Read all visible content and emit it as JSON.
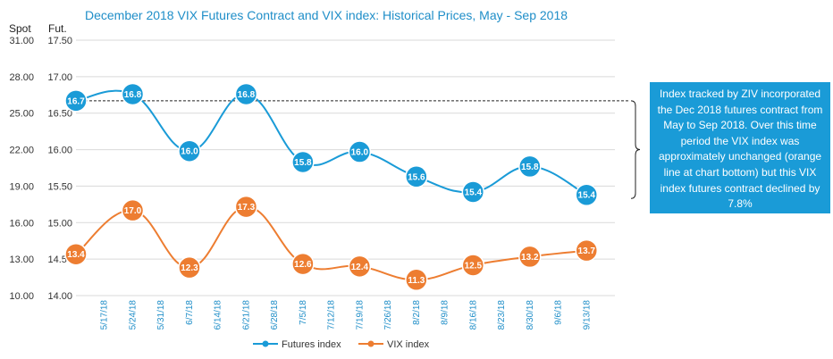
{
  "chart_data": {
    "type": "line",
    "title": "December 2018 VIX Futures Contract and VIX index: Historical Prices, May - Sep 2018",
    "left_axis_label": "Spot",
    "right_axis_label": "Fut.",
    "spot_ticks": [
      "31.00",
      "28.00",
      "25.00",
      "22.00",
      "19.00",
      "16.00",
      "13.00",
      "10.00"
    ],
    "fut_ticks": [
      "17.50",
      "17.00",
      "16.50",
      "16.00",
      "15.50",
      "15.00",
      "14.50",
      "14.00"
    ],
    "spot_range": [
      10,
      31
    ],
    "fut_range": [
      14,
      17.5
    ],
    "categories": [
      "5/17/18",
      "5/24/18",
      "5/31/18",
      "6/7/18",
      "6/14/18",
      "6/21/18",
      "6/28/18",
      "7/5/18",
      "7/12/18",
      "7/19/18",
      "7/26/18",
      "8/2/18",
      "8/9/18",
      "8/16/18",
      "8/23/18",
      "8/30/18",
      "9/6/18",
      "9/13/18"
    ],
    "series": [
      {
        "name": "Futures index",
        "axis": "fut",
        "color": "#1a9bd7",
        "points": [
          {
            "x": 0,
            "value": 16.67,
            "label": "16.7"
          },
          {
            "x": 2,
            "value": 16.76,
            "label": "16.8"
          },
          {
            "x": 4,
            "value": 15.98,
            "label": "16.0"
          },
          {
            "x": 6,
            "value": 16.76,
            "label": "16.8"
          },
          {
            "x": 8,
            "value": 15.83,
            "label": "15.8"
          },
          {
            "x": 10,
            "value": 15.97,
            "label": "16.0"
          },
          {
            "x": 12,
            "value": 15.63,
            "label": "15.6"
          },
          {
            "x": 14,
            "value": 15.42,
            "label": "15.4"
          },
          {
            "x": 16,
            "value": 15.77,
            "label": "15.8"
          },
          {
            "x": 18,
            "value": 15.38,
            "label": "15.4"
          }
        ]
      },
      {
        "name": "VIX index",
        "axis": "spot",
        "color": "#ed7d31",
        "points": [
          {
            "x": 0,
            "value": 13.4,
            "label": "13.4"
          },
          {
            "x": 2,
            "value": 17.0,
            "label": "17.0"
          },
          {
            "x": 4,
            "value": 12.3,
            "label": "12.3"
          },
          {
            "x": 6,
            "value": 17.3,
            "label": "17.3"
          },
          {
            "x": 8,
            "value": 12.6,
            "label": "12.6"
          },
          {
            "x": 10,
            "value": 12.4,
            "label": "12.4"
          },
          {
            "x": 12,
            "value": 11.3,
            "label": "11.3"
          },
          {
            "x": 14,
            "value": 12.5,
            "label": "12.5"
          },
          {
            "x": 16,
            "value": 13.2,
            "label": "13.2"
          },
          {
            "x": 18,
            "value": 13.7,
            "label": "13.7"
          }
        ]
      }
    ],
    "reference_line": {
      "axis": "fut",
      "value": 16.67,
      "style": "dashed"
    },
    "annotation": "Index tracked by ZIV incorporated the Dec 2018 futures contract from May to Sep 2018.  Over this time period the VIX index was approximately unchanged (orange line at chart bottom) but this VIX index futures contract declined by 7.8%",
    "legend_position": "bottom"
  }
}
